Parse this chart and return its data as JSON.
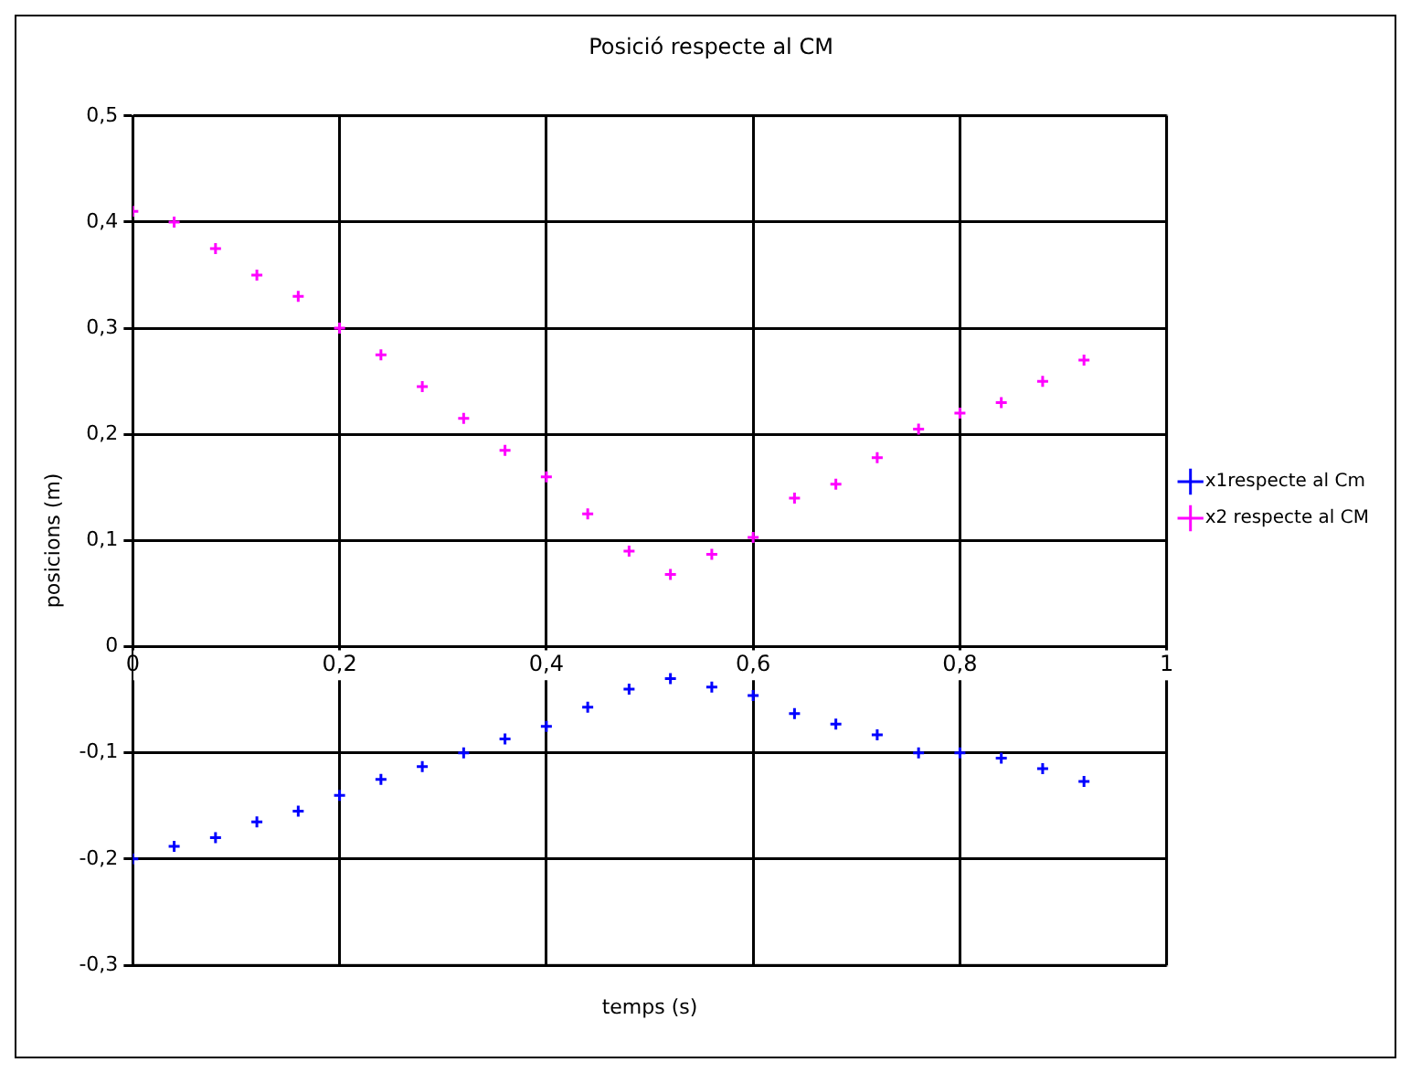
{
  "chart_data": {
    "type": "scatter",
    "title": "Posició respecte al CM",
    "xlabel": "temps (s)",
    "ylabel": "posicions (m)",
    "x": [
      0,
      0.04,
      0.08,
      0.12,
      0.16,
      0.2,
      0.24,
      0.28,
      0.32,
      0.36,
      0.4,
      0.44,
      0.48,
      0.52,
      0.56,
      0.6,
      0.64,
      0.68,
      0.72,
      0.76,
      0.8,
      0.84,
      0.88,
      0.92
    ],
    "series": [
      {
        "name": "x1respecte al Cm",
        "color": "#0000ff",
        "values": [
          -0.2,
          -0.188,
          -0.18,
          -0.165,
          -0.155,
          -0.14,
          -0.125,
          -0.113,
          -0.1,
          -0.087,
          -0.075,
          -0.057,
          -0.04,
          -0.03,
          -0.038,
          -0.046,
          -0.063,
          -0.073,
          -0.083,
          -0.1,
          -0.1,
          -0.105,
          -0.115,
          -0.127
        ]
      },
      {
        "name": "x2 respecte al CM",
        "color": "#ff00ff",
        "values": [
          0.41,
          0.4,
          0.375,
          0.35,
          0.33,
          0.3,
          0.275,
          0.245,
          0.215,
          0.185,
          0.16,
          0.125,
          0.09,
          0.068,
          0.087,
          0.103,
          0.14,
          0.153,
          0.178,
          0.205,
          0.22,
          0.23,
          0.25,
          0.27
        ]
      }
    ],
    "xlim": [
      0,
      1
    ],
    "xticks": [
      0,
      {
        "value": 0.2,
        "label": "0,2"
      },
      {
        "value": 0.4,
        "label": "0,4"
      },
      {
        "value": 0.6,
        "label": "0,6"
      },
      {
        "value": 0.8,
        "label": "0,8"
      },
      1
    ],
    "ylim": [
      -0.3,
      0.5
    ],
    "yticks": [
      {
        "value": -0.3,
        "label": "-0,3"
      },
      {
        "value": -0.2,
        "label": "-0,2"
      },
      {
        "value": -0.1,
        "label": "-0,1"
      },
      0,
      {
        "value": 0.1,
        "label": "0,1"
      },
      {
        "value": 0.2,
        "label": "0,2"
      },
      {
        "value": 0.3,
        "label": "0,3"
      },
      {
        "value": 0.4,
        "label": "0,4"
      },
      {
        "value": 0.5,
        "label": "0,5"
      }
    ],
    "grid": true,
    "legend": "right",
    "marker": "cross"
  }
}
